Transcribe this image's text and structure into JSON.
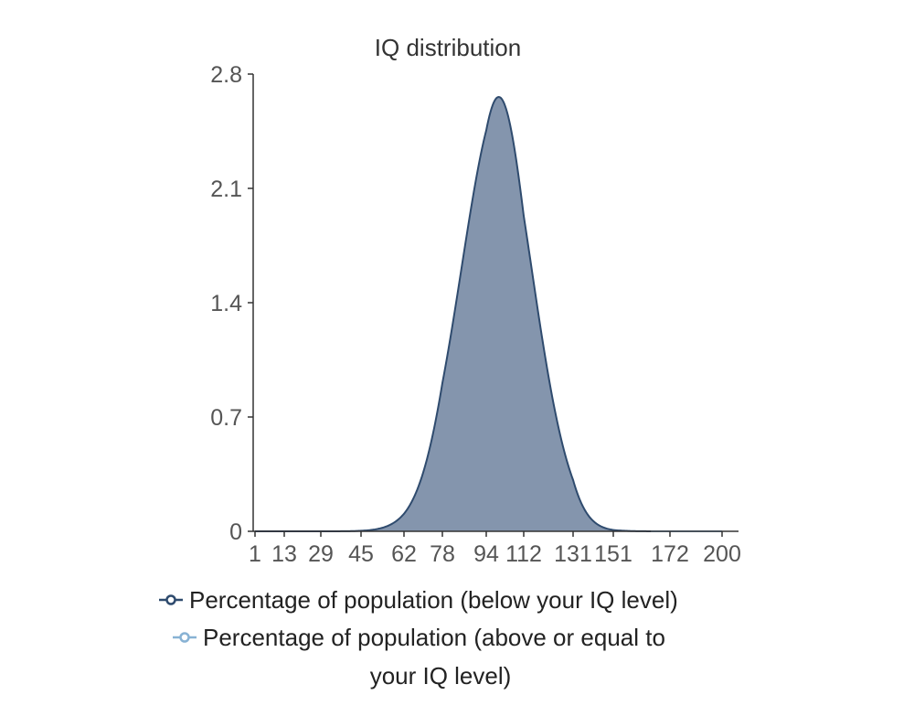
{
  "chart_data": {
    "type": "area",
    "title": "IQ distribution",
    "xlabel": "",
    "ylabel": "",
    "x_tick_labels": [
      "1",
      "13",
      "29",
      "45",
      "62",
      "78",
      "94",
      "112",
      "131",
      "151",
      "172",
      "200"
    ],
    "y_ticks": [
      0,
      0.7,
      1.4,
      2.1,
      2.8
    ],
    "y_tick_labels": [
      "0",
      "0.7",
      "1.4",
      "2.1",
      "2.8"
    ],
    "ylim": [
      0,
      2.8
    ],
    "distribution": {
      "mean": 100,
      "sd": 15,
      "peak_value": 2.66
    },
    "series": [
      {
        "name": "Percentage of population (below your IQ level)",
        "color": "#2f4b6e",
        "fill": "#8495ad",
        "x": [
          1,
          13,
          29,
          45,
          54,
          62,
          70,
          78,
          86,
          94,
          100,
          106,
          112,
          121,
          131,
          140,
          151,
          160,
          165
        ],
        "values": [
          0,
          0,
          0,
          0.01,
          0.03,
          0.11,
          0.37,
          0.9,
          1.72,
          2.43,
          2.66,
          2.43,
          1.72,
          0.82,
          0.23,
          0.05,
          0.01,
          0,
          0
        ]
      },
      {
        "name": "Percentage of population (above or equal to your IQ level)",
        "color": "#88b2d4",
        "x": [
          165,
          172,
          200
        ],
        "values": [
          0,
          0,
          0
        ]
      }
    ],
    "legend_position": "bottom"
  }
}
